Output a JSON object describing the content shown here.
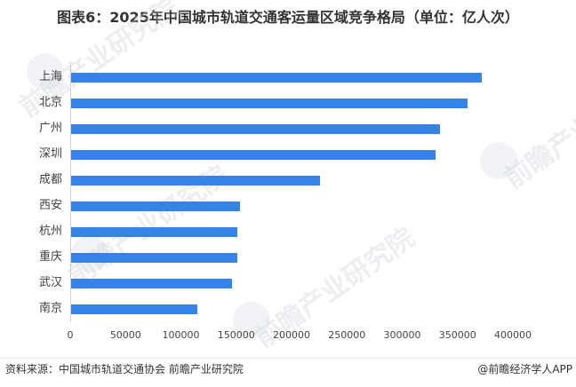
{
  "title": "图表6：2025年中国城市轨道交通客运量区域竞争格局（单位：亿人次）",
  "chart_data": {
    "type": "bar",
    "orientation": "horizontal",
    "title": "图表6：2025年中国城市轨道交通客运量区域竞争格局（单位：亿人次）",
    "categories": [
      "上海",
      "北京",
      "广州",
      "深圳",
      "成都",
      "西安",
      "杭州",
      "重庆",
      "武汉",
      "南京"
    ],
    "values": [
      371000,
      358000,
      333000,
      329500,
      225000,
      153000,
      150500,
      150500,
      145000,
      114000
    ],
    "xlabel": "",
    "ylabel": "",
    "xlim": [
      0,
      400000
    ],
    "x_ticks": [
      "0",
      "50000",
      "100000",
      "150000",
      "200000",
      "250000",
      "300000",
      "350000",
      "400000"
    ],
    "bar_color": "#3583e6",
    "grid": false,
    "legend": null
  },
  "footer": {
    "source": "资料来源：中国城市轨道交通协会 前瞻产业研究院",
    "credit": "@前瞻经济学人APP"
  },
  "watermark": {
    "text": "前瞻产业研究院"
  }
}
